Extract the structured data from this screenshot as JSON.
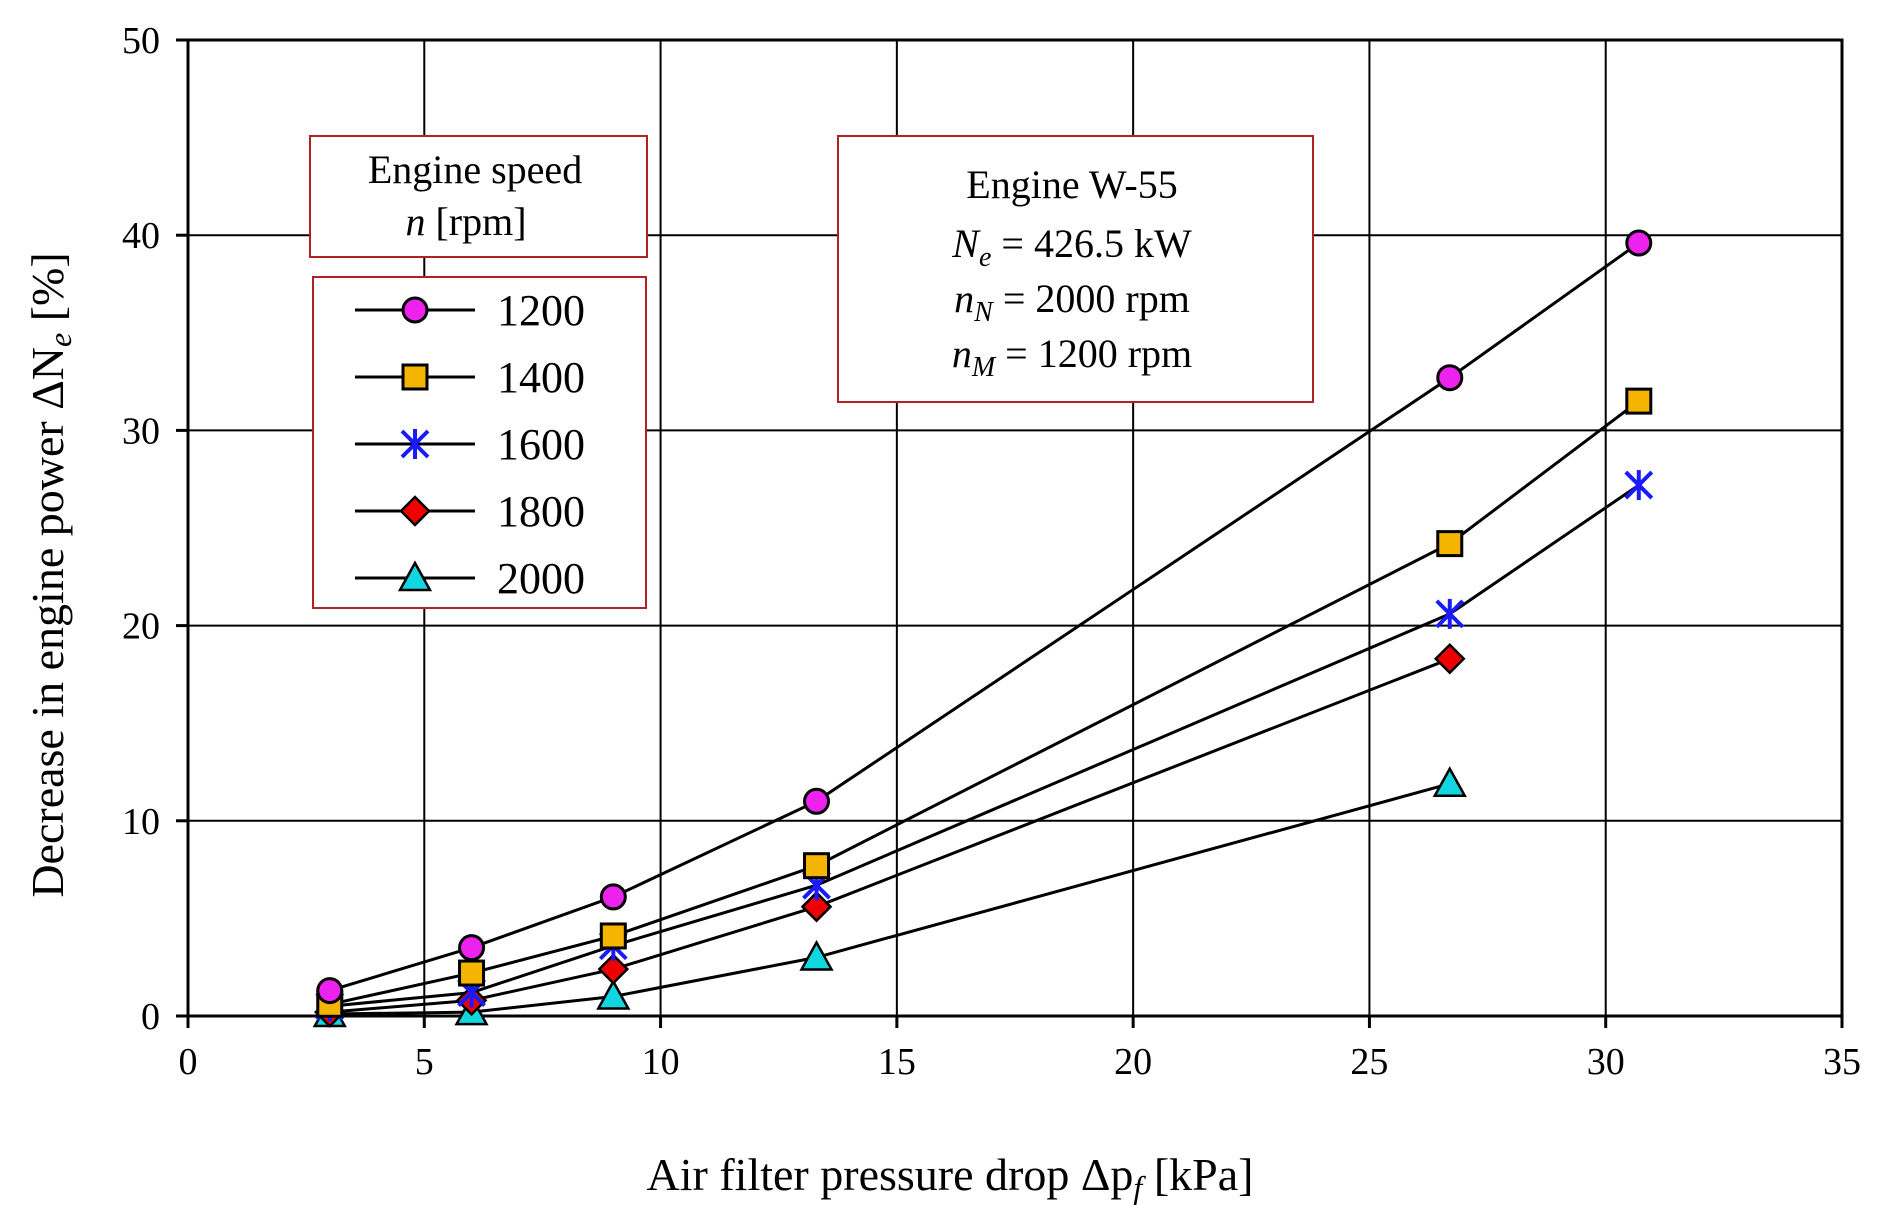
{
  "chart_data": {
    "type": "line",
    "xlabel": "Air filter pressure drop Δp",
    "xlabel_sub": "f",
    "xlabel_unit": " [kPa]",
    "ylabel": "Decrease in engine power ΔN",
    "ylabel_sub": "e",
    "ylabel_unit": " [%]",
    "xlim": [
      0,
      35
    ],
    "ylim": [
      0,
      50
    ],
    "xticks": [
      0,
      5,
      10,
      15,
      20,
      25,
      30,
      35
    ],
    "yticks": [
      0,
      10,
      20,
      30,
      40,
      50
    ],
    "grid": true,
    "legend": {
      "title_line1": "Engine speed",
      "title_var": "n",
      "title_unit": " [rpm]",
      "placement": "top-left"
    },
    "series": [
      {
        "name": "1200",
        "marker": "circle",
        "color": "#ee22ee",
        "line": true,
        "x": [
          3.0,
          6.0,
          9.0,
          13.3,
          26.7,
          30.7
        ],
        "y": [
          1.3,
          3.5,
          6.1,
          11.0,
          32.7,
          39.6
        ]
      },
      {
        "name": "1400",
        "marker": "square",
        "color": "#f5b400",
        "line": true,
        "x": [
          3.0,
          6.0,
          9.0,
          13.3,
          26.7,
          30.7
        ],
        "y": [
          0.6,
          2.2,
          4.1,
          7.7,
          24.2,
          31.5
        ]
      },
      {
        "name": "1600",
        "marker": "asterisk",
        "color": "#1a1aff",
        "line": true,
        "x": [
          3.0,
          6.0,
          9.0,
          13.3,
          26.7,
          30.7
        ],
        "y": [
          0.5,
          1.2,
          3.6,
          6.7,
          20.6,
          27.2
        ]
      },
      {
        "name": "1800",
        "marker": "diamond",
        "color": "#ee0000",
        "line": true,
        "x": [
          3.0,
          6.0,
          9.0,
          13.3,
          26.7
        ],
        "y": [
          0.2,
          0.8,
          2.4,
          5.6,
          18.3
        ]
      },
      {
        "name": "2000",
        "marker": "triangle",
        "color": "#11d6e0",
        "line": true,
        "x": [
          3.0,
          6.0,
          9.0,
          13.3,
          26.7
        ],
        "y": [
          0.1,
          0.2,
          1.0,
          3.0,
          11.9
        ]
      }
    ],
    "annotation": {
      "line1": "Engine W-55",
      "l2_var": "N",
      "l2_sub": "e",
      "l2_rest": " = 426.5 kW",
      "l3_var": "n",
      "l3_sub": "N",
      "l3_rest": " = 2000 rpm",
      "l4_var": "n",
      "l4_sub": "M",
      "l4_rest": " = 1200 rpm"
    }
  }
}
